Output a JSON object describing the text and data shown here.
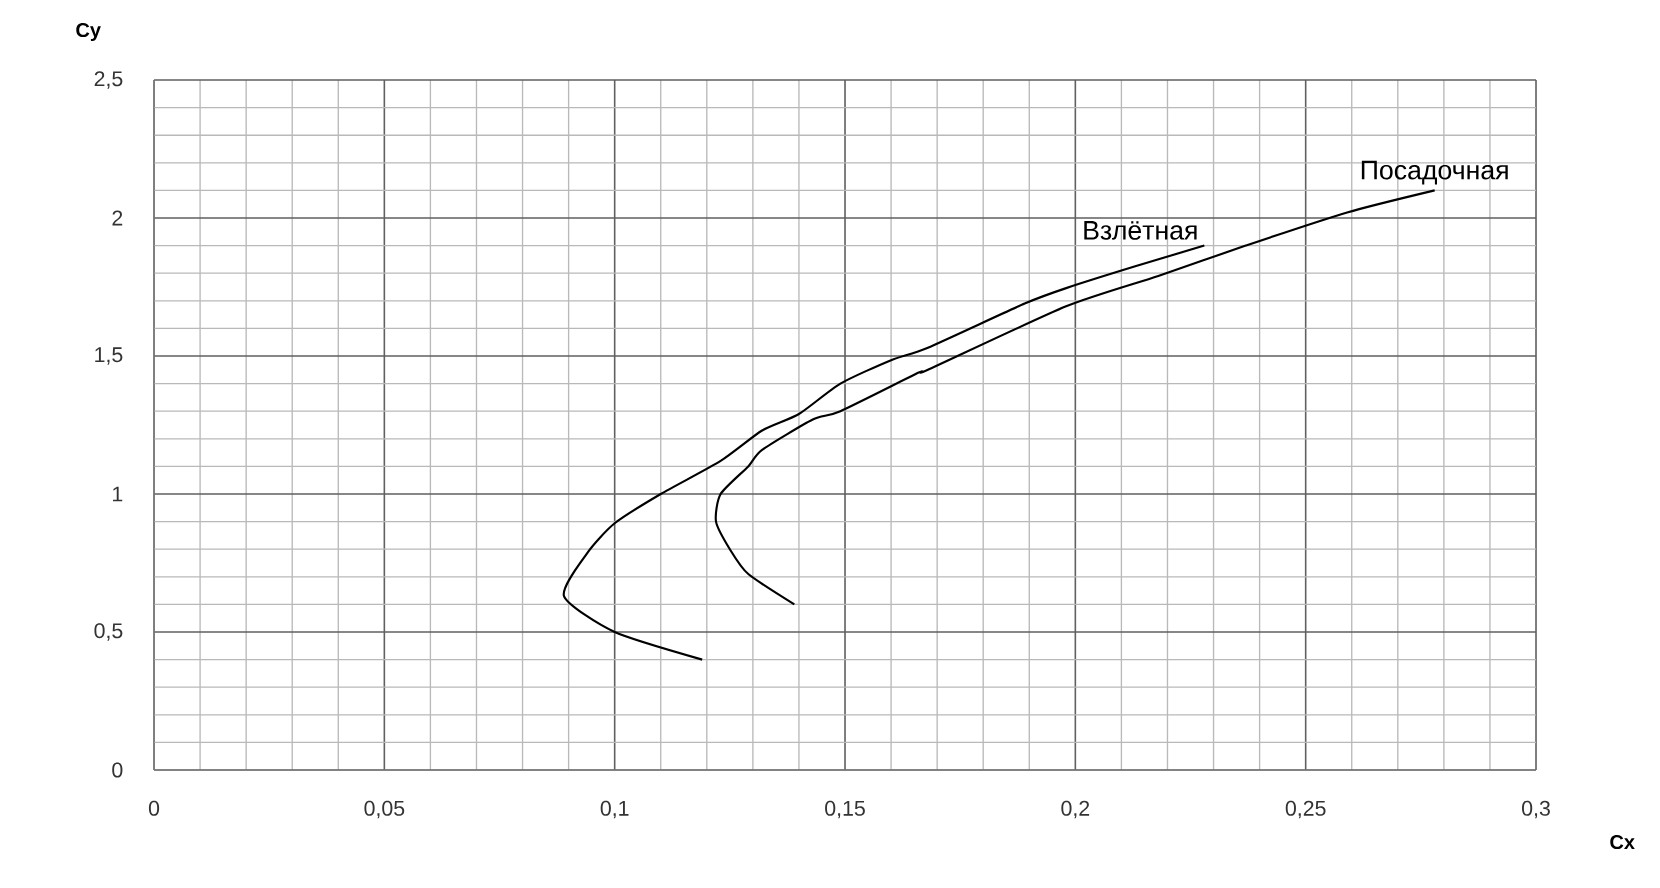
{
  "chart_data": {
    "type": "line",
    "xlabel": "Cx",
    "ylabel": "Cy",
    "xlim": [
      0,
      0.3
    ],
    "ylim": [
      0,
      2.5
    ],
    "xticks": [
      0,
      {
        "value": 0.05,
        "label": "0,05"
      },
      {
        "value": 0.1,
        "label": "0,1"
      },
      {
        "value": 0.15,
        "label": "0,15"
      },
      {
        "value": 0.2,
        "label": "0,2"
      },
      {
        "value": 0.25,
        "label": "0,25"
      },
      {
        "value": 0.3,
        "label": "0,3"
      }
    ],
    "yticks": [
      0,
      {
        "value": 0.5,
        "label": "0,5"
      },
      1,
      {
        "value": 1.5,
        "label": "1,5"
      },
      2,
      {
        "value": 2.5,
        "label": "2,5"
      }
    ],
    "grid": true,
    "marker": "none",
    "line_style": "solid",
    "series": [
      {
        "name": "Взлётная",
        "color": "#000000",
        "x": [
          0.119,
          0.1,
          0.089,
          0.094,
          0.1,
          0.11,
          0.123,
          0.132,
          0.14,
          0.149,
          0.16,
          0.168,
          0.189,
          0.198,
          0.213,
          0.228
        ],
        "values": [
          0.4,
          0.5,
          0.63,
          0.785,
          0.894,
          1.0,
          1.12,
          1.23,
          1.29,
          1.4,
          1.485,
          1.53,
          1.69,
          1.746,
          1.825,
          1.9
        ]
      },
      {
        "name": "Посадочная",
        "color": "#000000",
        "x": [
          0.139,
          0.129,
          0.125,
          0.122,
          0.123,
          0.129,
          0.132,
          0.143,
          0.149,
          0.166,
          0.168,
          0.198,
          0.218,
          0.237,
          0.259,
          0.278
        ],
        "values": [
          0.6,
          0.71,
          0.8,
          0.9,
          1.0,
          1.1,
          1.16,
          1.27,
          1.3,
          1.44,
          1.45,
          1.68,
          1.79,
          1.9,
          2.02,
          2.1
        ]
      }
    ]
  }
}
